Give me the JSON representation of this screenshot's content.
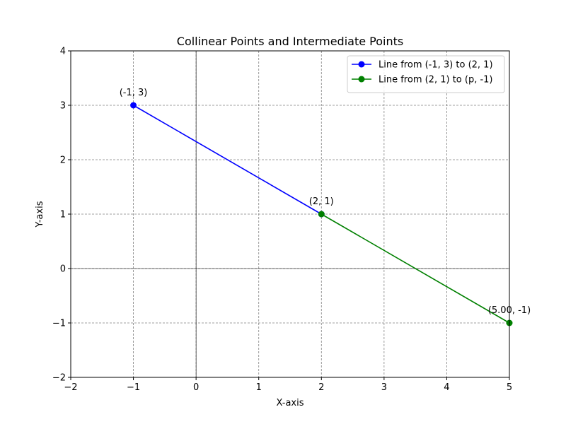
{
  "chart_data": {
    "type": "line",
    "title": "Collinear Points and Intermediate Points",
    "xlabel": "X-axis",
    "ylabel": "Y-axis",
    "xlim": [
      -2,
      5
    ],
    "ylim": [
      -2,
      4
    ],
    "xticks": [
      -2,
      -1,
      0,
      1,
      2,
      3,
      4,
      5
    ],
    "yticks": [
      -2,
      -1,
      0,
      1,
      2,
      3,
      4
    ],
    "xtick_labels": [
      "−2",
      "−1",
      "0",
      "1",
      "2",
      "3",
      "4",
      "5"
    ],
    "ytick_labels": [
      "−2",
      "−1",
      "0",
      "1",
      "2",
      "3",
      "4"
    ],
    "grid": true,
    "reference_lines": {
      "x": 0,
      "y": 0
    },
    "legend_position": "top-right",
    "series": [
      {
        "name": "Line from (-1, 3) to (2, 1)",
        "color": "#0000ff",
        "x": [
          -1,
          2
        ],
        "y": [
          3,
          1
        ]
      },
      {
        "name": "Line from (2, 1) to (p, -1)",
        "color": "#008000",
        "x": [
          2,
          5
        ],
        "y": [
          1,
          -1
        ]
      }
    ],
    "annotations": [
      {
        "text": "(-1, 3)",
        "x": -1,
        "y": 3
      },
      {
        "text": "(2, 1)",
        "x": 2,
        "y": 1
      },
      {
        "text": "(5.00, -1)",
        "x": 5,
        "y": -1
      }
    ]
  }
}
